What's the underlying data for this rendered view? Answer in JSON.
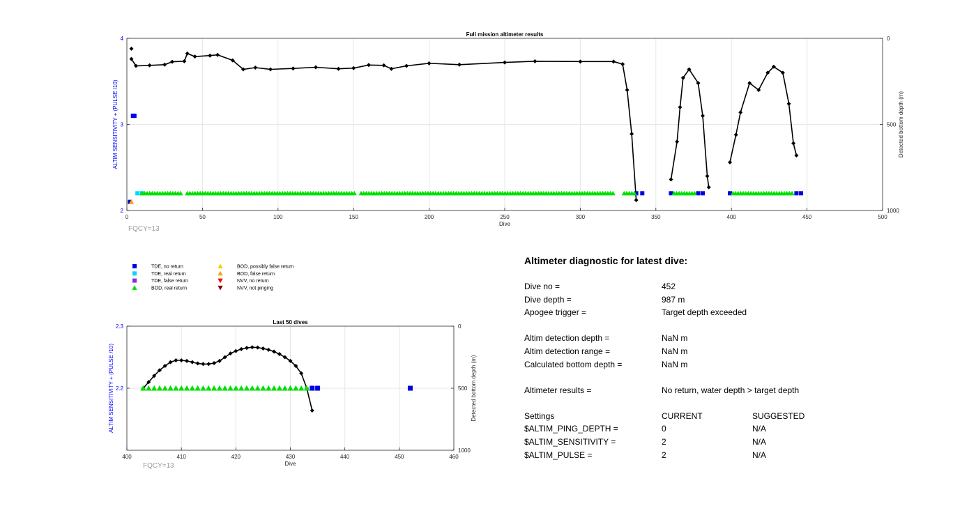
{
  "chart_data": [
    {
      "type": "scatter",
      "title": "Full mission altimeter results",
      "xlabel": "Dive",
      "ylabel": "ALTIM SENSITIVITY + (PULSE /10)",
      "ylabel_right": "Detected bottom depth (m)",
      "annotation": "FQCY=13",
      "xlim": [
        0,
        500
      ],
      "ylim": [
        2,
        4
      ],
      "ylim_right": [
        0,
        1000
      ],
      "right_axis_reversed": true,
      "grid": true,
      "xticks": [
        "0",
        "50",
        "100",
        "150",
        "200",
        "250",
        "300",
        "350",
        "400",
        "450",
        "500"
      ],
      "yticks": [
        "2",
        "3",
        "4"
      ],
      "yticks_right": [
        "0",
        "500",
        "1000"
      ],
      "series": [
        {
          "name": "Detected bottom depth",
          "axis": "right",
          "segments": [
            [
              [
                3,
                120
              ],
              [
                6,
                160
              ],
              [
                15,
                157
              ],
              [
                25,
                153
              ],
              [
                30,
                136
              ],
              [
                38,
                133
              ],
              [
                40,
                88
              ],
              [
                45,
                106
              ],
              [
                55,
                100
              ],
              [
                60,
                96
              ],
              [
                70,
                128
              ],
              [
                77,
                180
              ],
              [
                85,
                170
              ],
              [
                95,
                180
              ],
              [
                110,
                175
              ],
              [
                125,
                168
              ],
              [
                140,
                177
              ],
              [
                150,
                173
              ],
              [
                160,
                155
              ],
              [
                170,
                157
              ],
              [
                175,
                177
              ],
              [
                185,
                160
              ],
              [
                200,
                145
              ],
              [
                220,
                153
              ],
              [
                250,
                140
              ],
              [
                270,
                133
              ],
              [
                300,
                135
              ],
              [
                322,
                135
              ],
              [
                328,
                150
              ],
              [
                331,
                300
              ],
              [
                334,
                555
              ],
              [
                337,
                940
              ]
            ],
            [
              [
                360,
                820
              ],
              [
                364,
                600
              ],
              [
                366,
                400
              ],
              [
                368,
                230
              ],
              [
                372,
                180
              ],
              [
                378,
                260
              ],
              [
                381,
                450
              ],
              [
                384,
                800
              ],
              [
                385,
                865
              ]
            ],
            [
              [
                399,
                720
              ],
              [
                403,
                560
              ],
              [
                406,
                430
              ],
              [
                412,
                260
              ],
              [
                418,
                300
              ],
              [
                424,
                200
              ],
              [
                428,
                165
              ],
              [
                434,
                200
              ],
              [
                438,
                380
              ],
              [
                441,
                610
              ],
              [
                443,
                680
              ]
            ]
          ]
        },
        {
          "name": "TDE, no return",
          "marker": "square",
          "color": "#0000e0",
          "axis": "left",
          "points": [
            [
              2,
              2.1
            ],
            [
              4,
              3.1
            ],
            [
              5,
              3.1
            ],
            [
              337,
              2.2
            ],
            [
              341,
              2.2
            ],
            [
              360,
              2.2
            ],
            [
              378,
              2.2
            ],
            [
              381,
              2.2
            ],
            [
              399,
              2.2
            ],
            [
              443,
              2.2
            ],
            [
              446,
              2.2
            ]
          ]
        },
        {
          "name": "TDE, real return",
          "marker": "square",
          "color": "#00d8ff",
          "axis": "left",
          "points": [
            [
              7,
              2.2
            ],
            [
              10,
              2.2
            ]
          ]
        },
        {
          "name": "BOD, real return",
          "marker": "triangle",
          "color": "#00e000",
          "axis": "left",
          "ranges": [
            [
              10,
              37,
              2.2
            ],
            [
              40,
              152,
              2.2
            ],
            [
              155,
              323,
              2.2
            ],
            [
              329,
              336,
              2.2
            ],
            [
              362,
              376,
              2.2
            ],
            [
              401,
              441,
              2.2
            ]
          ]
        },
        {
          "name": "BOD, false return",
          "marker": "triangle",
          "color": "#ffa000",
          "axis": "left",
          "points": [
            [
              3,
              2.1
            ]
          ]
        },
        {
          "name": "Apogee marker",
          "marker": "diamond",
          "color": "#000000",
          "axis": "left",
          "points": [
            [
              3,
              3.88
            ]
          ]
        }
      ]
    },
    {
      "type": "scatter",
      "title": "Last 50 dives",
      "xlabel": "Dive",
      "ylabel": "ALTIM SENSITIVITY + (PULSE /10)",
      "ylabel_right": "Detected bottom depth (m)",
      "annotation": "FQCY=13",
      "xlim": [
        400,
        460
      ],
      "ylim": [
        2.1,
        2.3
      ],
      "ylim_right": [
        0,
        1000
      ],
      "right_axis_reversed": true,
      "grid": true,
      "xticks": [
        "400",
        "410",
        "420",
        "430",
        "440",
        "450",
        "460"
      ],
      "yticks": [
        "2.2",
        "2.3"
      ],
      "yticks_right": [
        "0",
        "500",
        "1000"
      ],
      "series": [
        {
          "name": "Detected bottom depth",
          "axis": "right",
          "points": [
            [
              403,
              500
            ],
            [
              404,
              450
            ],
            [
              405,
              400
            ],
            [
              406,
              355
            ],
            [
              407,
              320
            ],
            [
              408,
              290
            ],
            [
              409,
              275
            ],
            [
              410,
              275
            ],
            [
              411,
              280
            ],
            [
              412,
              290
            ],
            [
              413,
              300
            ],
            [
              414,
              305
            ],
            [
              415,
              305
            ],
            [
              416,
              298
            ],
            [
              417,
              280
            ],
            [
              418,
              250
            ],
            [
              419,
              220
            ],
            [
              420,
              200
            ],
            [
              421,
              185
            ],
            [
              422,
              175
            ],
            [
              423,
              170
            ],
            [
              424,
              172
            ],
            [
              425,
              180
            ],
            [
              426,
              190
            ],
            [
              427,
              205
            ],
            [
              428,
              225
            ],
            [
              429,
              250
            ],
            [
              430,
              280
            ],
            [
              431,
              320
            ],
            [
              432,
              380
            ],
            [
              433,
              500
            ],
            [
              434,
              680
            ]
          ]
        },
        {
          "name": "BOD, real return",
          "marker": "triangle",
          "color": "#00e000",
          "axis": "left",
          "ranges": [
            [
              403,
              434,
              2.2
            ]
          ]
        },
        {
          "name": "TDE, no return",
          "marker": "square",
          "color": "#0000e0",
          "axis": "left",
          "points": [
            [
              434,
              2.2
            ],
            [
              435,
              2.2
            ],
            [
              452,
              2.2
            ]
          ]
        }
      ]
    }
  ],
  "legend": [
    {
      "label": "TDE, no return",
      "marker": "square",
      "color": "#0000e0"
    },
    {
      "label": "TDE, real return",
      "marker": "square",
      "color": "#00d8ff"
    },
    {
      "label": "TDE, false return",
      "marker": "square",
      "color": "#8a2be2"
    },
    {
      "label": "BOD, real return",
      "marker": "triangle-up",
      "color": "#00e000"
    },
    {
      "label": "BOD, possibly false return",
      "marker": "triangle-up",
      "color": "#f0d000"
    },
    {
      "label": "BOD, false return",
      "marker": "triangle-up",
      "color": "#ffa000"
    },
    {
      "label": "NVV, no return",
      "marker": "triangle-down",
      "color": "#ff0000"
    },
    {
      "label": "NVV, not pinging",
      "marker": "triangle-down",
      "color": "#8b0000"
    }
  ],
  "diagnostic": {
    "title": "Altimeter diagnostic for latest dive:",
    "dive_no": {
      "label": "Dive no =",
      "value": "452"
    },
    "dive_depth": {
      "label": "Dive depth =",
      "value": "987 m"
    },
    "apogee_trigger": {
      "label": "Apogee trigger =",
      "value": "Target depth exceeded"
    },
    "detection_depth": {
      "label": "Altim detection depth =",
      "value": "NaN m"
    },
    "detection_range": {
      "label": "Altim detection range =",
      "value": "NaN m"
    },
    "bottom_depth": {
      "label": "Calculated bottom depth =",
      "value": "NaN m"
    },
    "results": {
      "label": "Altimeter results =",
      "value": "No return, water depth > target depth"
    },
    "settings_header": {
      "label": "Settings",
      "current": "CURRENT",
      "suggested": "SUGGESTED"
    },
    "ping_depth": {
      "label": "$ALTIM_PING_DEPTH =",
      "current": "0",
      "suggested": "N/A"
    },
    "sensitivity": {
      "label": "$ALTIM_SENSITIVITY =",
      "current": "2",
      "suggested": "N/A"
    },
    "pulse": {
      "label": "$ALTIM_PULSE =",
      "current": "2",
      "suggested": "N/A"
    }
  }
}
